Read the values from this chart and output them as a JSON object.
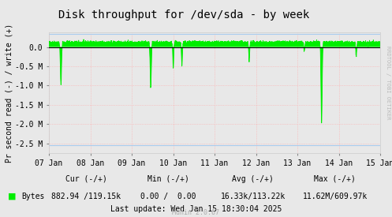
{
  "title": "Disk throughput for /dev/sda - by week",
  "ylabel": "Pr second read (-) / write (+)",
  "bg_color": "#e8e8e8",
  "plot_bg_color": "#e8e8e8",
  "grid_color": "#ffaaaa",
  "line_color": "#00ee00",
  "ylim": [
    -2750000,
    375000
  ],
  "yticks": [
    0,
    -500000,
    -1000000,
    -1500000,
    -2000000,
    -2500000
  ],
  "ytick_labels": [
    "0.0",
    "-0.5 M",
    "-1.0 M",
    "-1.5 M",
    "-2.0 M",
    "-2.5 M"
  ],
  "xtick_days": [
    7,
    8,
    9,
    10,
    11,
    12,
    13,
    14,
    15
  ],
  "xtick_labels": [
    "07 Jan",
    "08 Jan",
    "09 Jan",
    "10 Jan",
    "11 Jan",
    "12 Jan",
    "13 Jan",
    "14 Jan",
    "15 Jan"
  ],
  "rrdtool_label": "RRDTOOL / TOBI OETIKER",
  "legend_label": "Bytes",
  "cur_label": "Cur (-/+)",
  "cur_val": "882.94 /119.15k",
  "min_label": "Min (-/+)",
  "min_val": "0.00 /  0.00",
  "avg_label": "Avg (-/+)",
  "avg_val": "16.33k/113.22k",
  "max_label": "Max (-/+)",
  "max_val": "11.62M/609.97k",
  "last_update": "Last update: Wed Jan 15 18:30:04 2025",
  "munin_label": "Munin 2.0.67",
  "title_fontsize": 10,
  "axis_fontsize": 7,
  "legend_fontsize": 7,
  "blue_line_color": "#aaccee",
  "zero_line_color": "#000000"
}
